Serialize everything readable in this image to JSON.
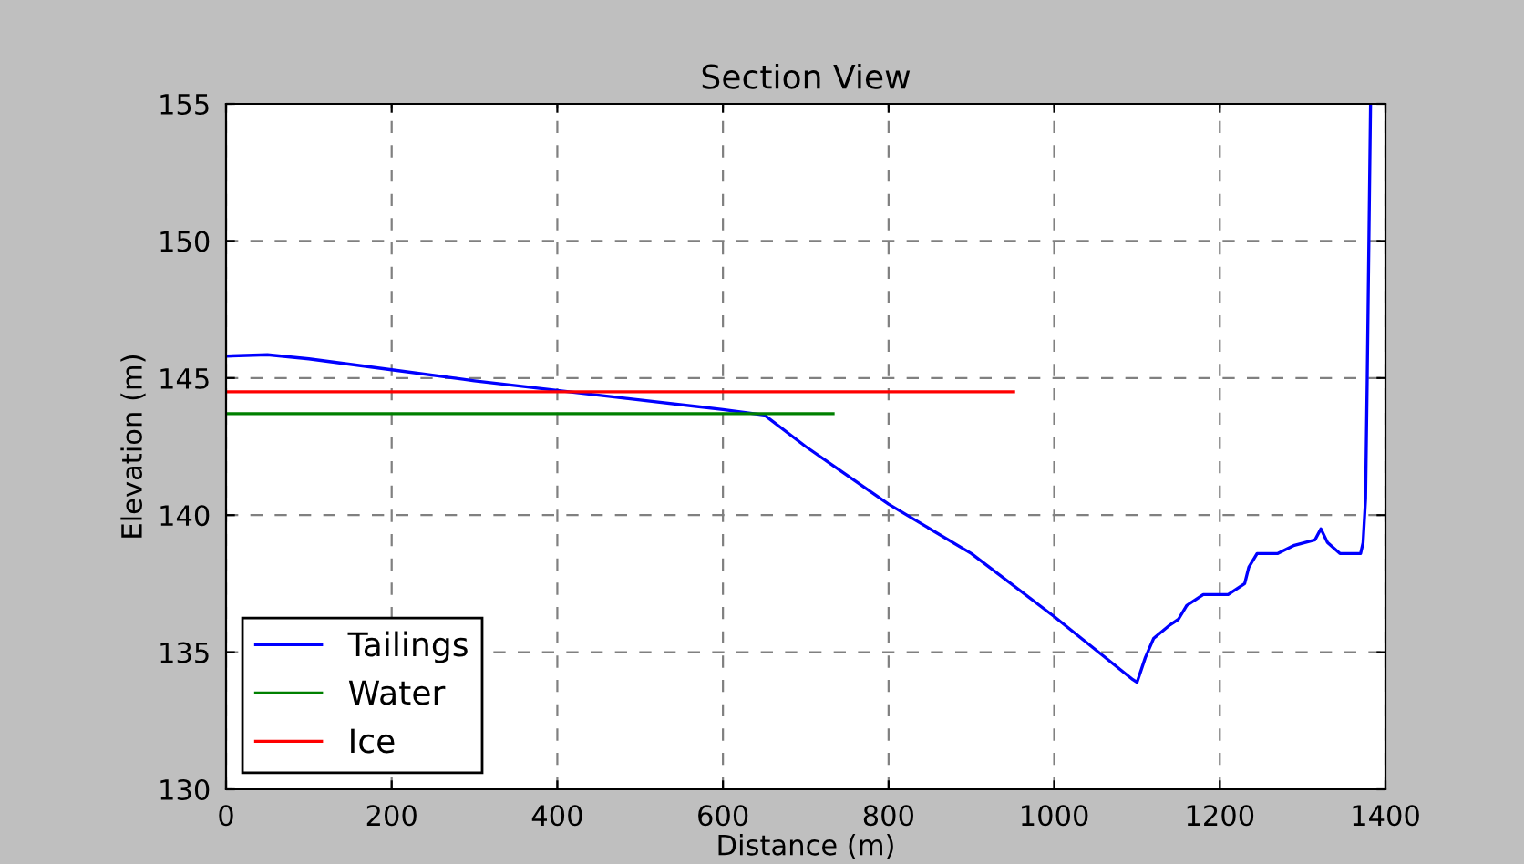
{
  "chart_data": {
    "type": "line",
    "title": "Section View",
    "xlabel": "Distance (m)",
    "ylabel": "Elevation (m)",
    "xlim": [
      0,
      1400
    ],
    "ylim": [
      130,
      155
    ],
    "xticks": [
      0,
      200,
      400,
      600,
      800,
      1000,
      1200,
      1400
    ],
    "yticks": [
      130,
      135,
      140,
      145,
      150,
      155
    ],
    "grid": true,
    "legend": "bottom left",
    "line_style": "solid",
    "marker": "none",
    "series": [
      {
        "name": "Tailings",
        "color": "#0000ff",
        "x": [
          0,
          50,
          100,
          200,
          300,
          400,
          500,
          600,
          650,
          700,
          800,
          900,
          1000,
          1095,
          1100,
          1110,
          1120,
          1140,
          1150,
          1160,
          1180,
          1210,
          1230,
          1235,
          1245,
          1270,
          1290,
          1315,
          1322,
          1330,
          1345,
          1370,
          1373,
          1376,
          1378,
          1380,
          1382
        ],
        "values": [
          145.8,
          145.85,
          145.7,
          145.3,
          144.9,
          144.55,
          144.2,
          143.85,
          143.65,
          142.5,
          140.4,
          138.6,
          136.3,
          134.0,
          133.9,
          134.8,
          135.5,
          136.0,
          136.2,
          136.7,
          137.1,
          137.1,
          137.5,
          138.1,
          138.6,
          138.6,
          138.9,
          139.1,
          139.5,
          139.0,
          138.6,
          138.6,
          139.0,
          140.6,
          145,
          150,
          155
        ]
      },
      {
        "name": "Water",
        "color": "#008000",
        "x": [
          0,
          733
        ],
        "values": [
          143.7,
          143.7
        ]
      },
      {
        "name": "Ice",
        "color": "#ff0000",
        "x": [
          0,
          951
        ],
        "values": [
          144.5,
          144.5
        ]
      }
    ]
  }
}
